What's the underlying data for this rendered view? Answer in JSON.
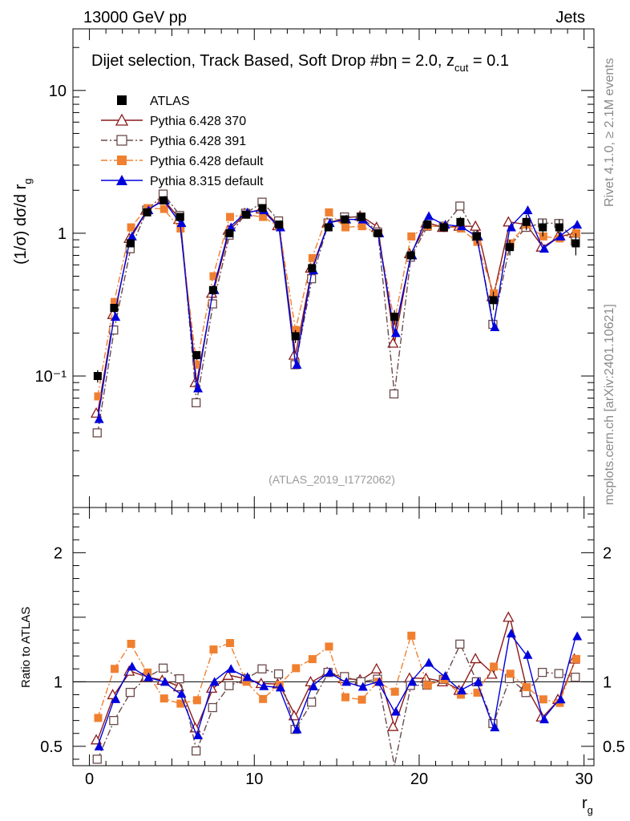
{
  "header": {
    "left": "13000 GeV pp",
    "right": "Jets"
  },
  "side_labels": {
    "rivet": "Rivet 4.1.0, ≥ 2.1M events",
    "mcplots": "mcplots.cern.ch [arXiv:2401.10621]"
  },
  "chart_data": {
    "type": "scatter",
    "title": "Dijet selection, Track Based, Soft Drop #bη = 2.0, z_cut = 0.1",
    "title_main": "Dijet selection, Track Based, Soft Drop #b",
    "title_eta": "η = 2.0, z",
    "title_sub": "cut",
    "title_end": " = 0.1",
    "ylabel": "(1/σ) dσ/d r_g",
    "ylabel_main": "(1/σ) dσ/d r",
    "ylabel_sub": "g",
    "xlabel": "r_g",
    "xlabel_main": "r",
    "xlabel_sub": "g",
    "ratio_ylabel": "Ratio to ATLAS",
    "analysis_id": "(ATLAS_2019_I1772062)",
    "xlim": [
      -1,
      30.6
    ],
    "ylim_log": [
      0.012,
      27
    ],
    "ratio_ylim": [
      0.35,
      2.35
    ],
    "x_ticks": [
      {
        "v": 0,
        "label": "0"
      },
      {
        "v": 10,
        "label": "10"
      },
      {
        "v": 20,
        "label": "20"
      },
      {
        "v": 30,
        "label": "30"
      }
    ],
    "y_ticks": [
      {
        "v": 10,
        "label": "10"
      },
      {
        "v": 1,
        "label": "1"
      },
      {
        "v": 0.1,
        "label": "10⁻¹"
      }
    ],
    "ratio_ticks": [
      {
        "v": 0.5,
        "label": "0.5"
      },
      {
        "v": 1,
        "label": "1"
      },
      {
        "v": 2,
        "label": "2"
      }
    ],
    "x": [
      0.5,
      1.5,
      2.5,
      3.5,
      4.5,
      5.5,
      6.5,
      7.5,
      8.5,
      9.5,
      10.5,
      11.5,
      12.5,
      13.5,
      14.5,
      15.5,
      16.5,
      17.5,
      18.5,
      19.5,
      20.5,
      21.5,
      22.5,
      23.5,
      24.5,
      25.5,
      26.5,
      27.5,
      28.5,
      29.5
    ],
    "data": {
      "name": "ATLAS",
      "color": "#000000",
      "values": [
        0.1,
        0.3,
        0.85,
        1.4,
        1.7,
        1.3,
        0.14,
        0.4,
        1.0,
        1.35,
        1.5,
        1.15,
        0.19,
        0.57,
        1.1,
        1.25,
        1.3,
        1.0,
        0.26,
        0.7,
        1.15,
        1.1,
        1.2,
        0.95,
        0.34,
        0.8,
        1.2,
        1.1,
        1.1,
        0.85
      ],
      "errors": [
        0.01,
        0.02,
        0.04,
        0.05,
        0.06,
        0.05,
        0.01,
        0.03,
        0.04,
        0.05,
        0.05,
        0.05,
        0.02,
        0.03,
        0.05,
        0.05,
        0.05,
        0.05,
        0.03,
        0.05,
        0.08,
        0.08,
        0.1,
        0.1,
        0.05,
        0.1,
        0.15,
        0.15,
        0.15,
        0.15
      ]
    },
    "series": [
      {
        "name": "Pythia 6.428 370",
        "color": "#8b1a1a",
        "marker": "triangle-open",
        "dash": "",
        "values": [
          0.055,
          0.27,
          0.92,
          1.45,
          1.72,
          1.25,
          0.09,
          0.38,
          1.05,
          1.38,
          1.48,
          1.13,
          0.14,
          0.57,
          1.18,
          1.28,
          1.32,
          1.1,
          0.17,
          0.72,
          1.18,
          1.1,
          1.12,
          1.12,
          0.36,
          1.2,
          1.15,
          0.8,
          0.95,
          1.0
        ]
      },
      {
        "name": "Pythia 6.428 391",
        "color": "#6b4a4a",
        "marker": "square-open",
        "dash": "8,3,2,3",
        "values": [
          0.04,
          0.21,
          0.78,
          1.45,
          1.88,
          1.33,
          0.065,
          0.32,
          0.97,
          1.38,
          1.65,
          1.22,
          0.12,
          0.48,
          1.18,
          1.3,
          1.3,
          1.02,
          0.075,
          0.68,
          1.12,
          1.12,
          1.55,
          0.95,
          0.23,
          0.82,
          1.1,
          1.18,
          1.17,
          0.88
        ]
      },
      {
        "name": "Pythia 6.428 default",
        "color": "#f08030",
        "marker": "square-filled",
        "dash": "8,3,2,3",
        "values": [
          0.072,
          0.33,
          1.1,
          1.5,
          1.48,
          1.08,
          0.12,
          0.5,
          1.3,
          1.35,
          1.3,
          1.12,
          0.21,
          0.67,
          1.4,
          1.1,
          1.12,
          1.0,
          0.24,
          0.95,
          1.12,
          1.12,
          1.08,
          0.87,
          0.38,
          0.85,
          1.15,
          0.95,
          0.92,
          1.0
        ]
      },
      {
        "name": "Pythia 8.315 default",
        "color": "#0000dd",
        "marker": "triangle-filled",
        "dash": "",
        "values": [
          0.05,
          0.26,
          0.95,
          1.45,
          1.7,
          1.18,
          0.082,
          0.4,
          1.1,
          1.4,
          1.45,
          1.1,
          0.12,
          0.55,
          1.18,
          1.25,
          1.25,
          1.0,
          0.2,
          0.7,
          1.32,
          1.15,
          1.12,
          0.95,
          0.22,
          1.1,
          1.45,
          0.78,
          0.95,
          1.15
        ]
      }
    ],
    "legend": {
      "position": "top-left",
      "entries": [
        "ATLAS",
        "Pythia 6.428 370",
        "Pythia 6.428 391",
        "Pythia 6.428 default",
        "Pythia 8.315 default"
      ]
    }
  }
}
